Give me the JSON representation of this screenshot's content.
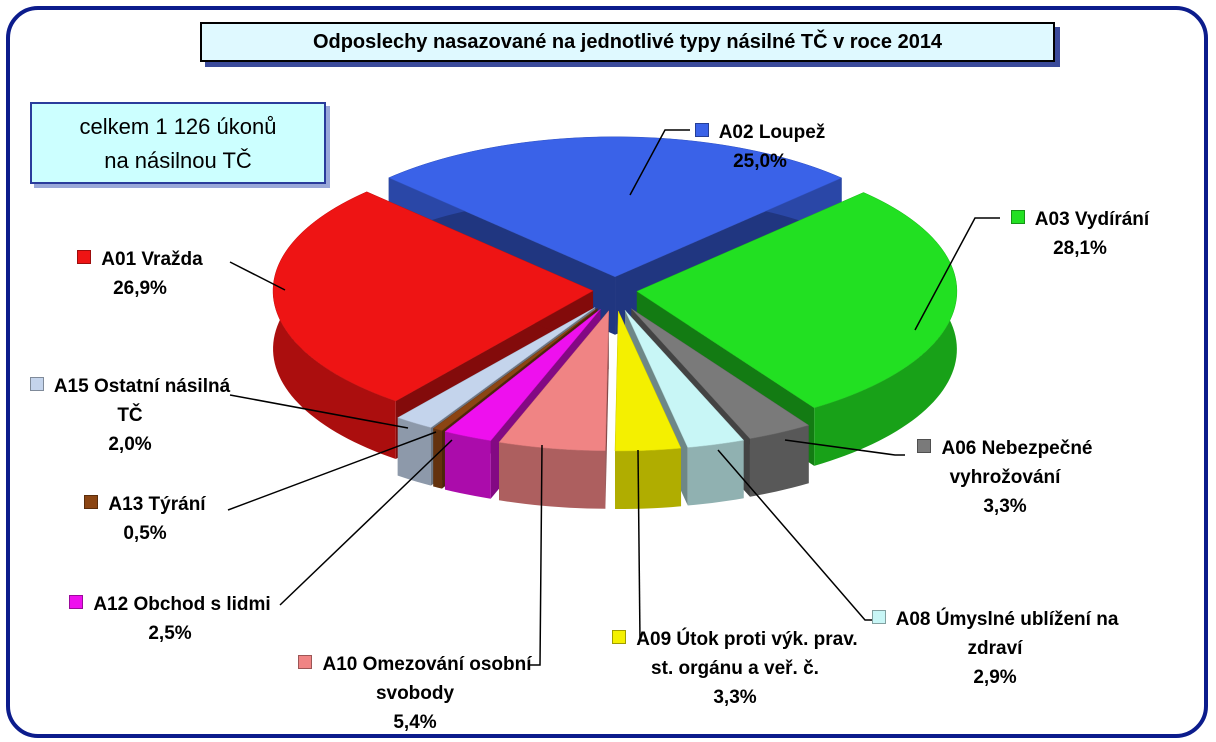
{
  "chart_data": {
    "type": "pie",
    "title": "Odposlechy nasazované na jednotlivé typy násilné TČ v roce 2014",
    "annotation": "celkem 1 126 úkonů na násilnou TČ",
    "categories": [
      "A02 Loupež",
      "A03 Vydírání",
      "A06 Nebezpečné vyhrožování",
      "A08 Úmyslné ublížení na zdraví",
      "A09 Útok proti výk. prav. st. orgánu a veř. č.",
      "A10 Omezování osobní svobody",
      "A12 Obchod s lidmi",
      "A13 Týrání",
      "A15 Ostatní násilná TČ",
      "A01 Vražda"
    ],
    "values": [
      25.0,
      28.1,
      3.3,
      2.9,
      3.3,
      5.4,
      2.5,
      0.5,
      2.0,
      26.9
    ],
    "value_labels": [
      "25,0%",
      "28,1%",
      "3,3%",
      "2,9%",
      "3,3%",
      "5,4%",
      "2,5%",
      "0,5%",
      "2,0%",
      "26,9%"
    ],
    "colors": [
      "#3a62e8",
      "#22e022",
      "#7a7a7a",
      "#c8f6f6",
      "#f4f000",
      "#f08484",
      "#ee10ee",
      "#8b4513",
      "#c4d4ec",
      "#ee1414"
    ]
  }
}
